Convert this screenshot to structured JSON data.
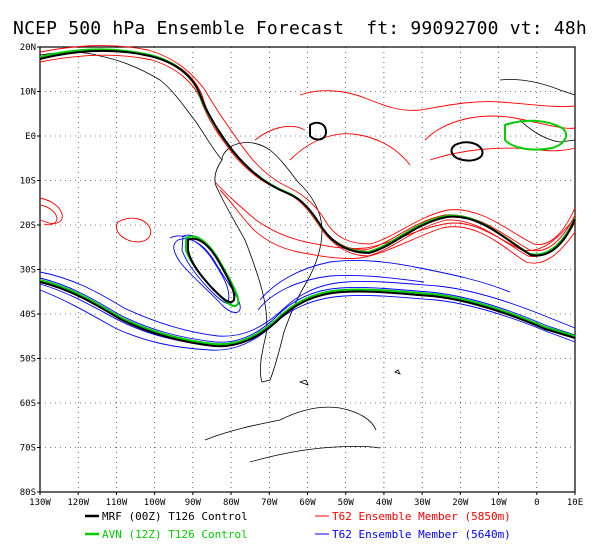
{
  "title": "NCEP 500 hPa Ensemble Forecast  ft: 99092700 vt: 48h",
  "map": {
    "lat_labels": [
      "20N",
      "10N",
      "E0",
      "10S",
      "20S",
      "30S",
      "40S",
      "50S",
      "60S",
      "70S",
      "80S"
    ],
    "lon_labels": [
      "130W",
      "120W",
      "110W",
      "100W",
      "90W",
      "80W",
      "70W",
      "60W",
      "50W",
      "40W",
      "30W",
      "20W",
      "10W",
      "0",
      "10E"
    ],
    "extent": {
      "lon": [
        -130,
        10
      ],
      "lat": [
        -80,
        20
      ]
    },
    "grid": "dotted"
  },
  "legend": [
    {
      "label": "MRF (00Z) T126 Control",
      "color": "#000000"
    },
    {
      "label": "AVN (12Z) T126 Control",
      "color": "#00cc00"
    },
    {
      "label": "T62 Ensemble Member (5850m)",
      "color": "#ff0000"
    },
    {
      "label": "T62 Ensemble Member (5640m)",
      "color": "#0000ff"
    }
  ]
}
